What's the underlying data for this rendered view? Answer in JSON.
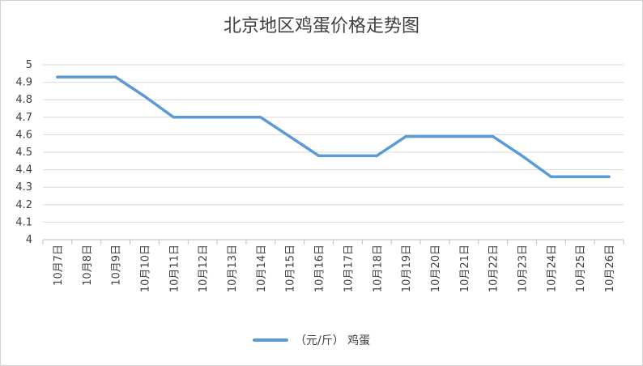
{
  "chart_data": {
    "type": "line",
    "title": "北京地区鸡蛋价格走势图",
    "xlabel": "",
    "ylabel": "",
    "ylim": [
      4,
      5
    ],
    "yticks": [
      "5",
      "4.9",
      "4.8",
      "4.7",
      "4.6",
      "4.5",
      "4.4",
      "4.3",
      "4.2",
      "4.1",
      "4"
    ],
    "grid": true,
    "legend_position": "bottom",
    "categories": [
      "10月7日",
      "10月8日",
      "10月9日",
      "10月10日",
      "10月11日",
      "10月12日",
      "10月13日",
      "10月14日",
      "10月15日",
      "10月16日",
      "10月17日",
      "10月18日",
      "10月19日",
      "10月20日",
      "10月21日",
      "10月22日",
      "10月23日",
      "10月24日",
      "10月25日",
      "10月26日"
    ],
    "series": [
      {
        "name": "（元/斤） 鸡蛋",
        "color": "#5b9bd5",
        "values": [
          4.93,
          4.93,
          4.93,
          4.82,
          4.7,
          4.7,
          4.7,
          4.7,
          4.59,
          4.48,
          4.48,
          4.48,
          4.59,
          4.59,
          4.59,
          4.59,
          4.48,
          4.36,
          4.36,
          4.36
        ]
      }
    ]
  }
}
